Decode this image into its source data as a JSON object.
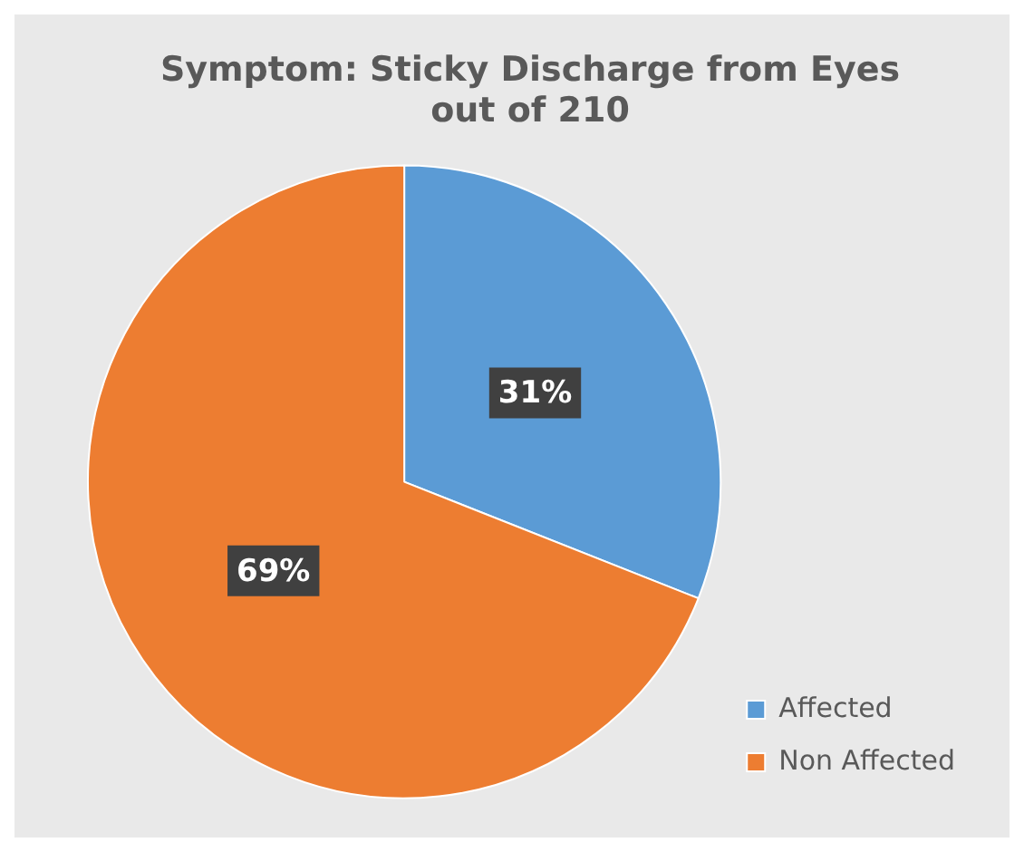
{
  "chart_data": {
    "type": "pie",
    "title": "Symptom: Sticky Discharge from Eyes out of 210",
    "categories": [
      "Affected",
      "Non Affected"
    ],
    "values": [
      31,
      69
    ],
    "colors": [
      "#5b9bd5",
      "#ed7d31"
    ],
    "value_labels": [
      "31%",
      "69%"
    ],
    "legend": "bottom right"
  }
}
